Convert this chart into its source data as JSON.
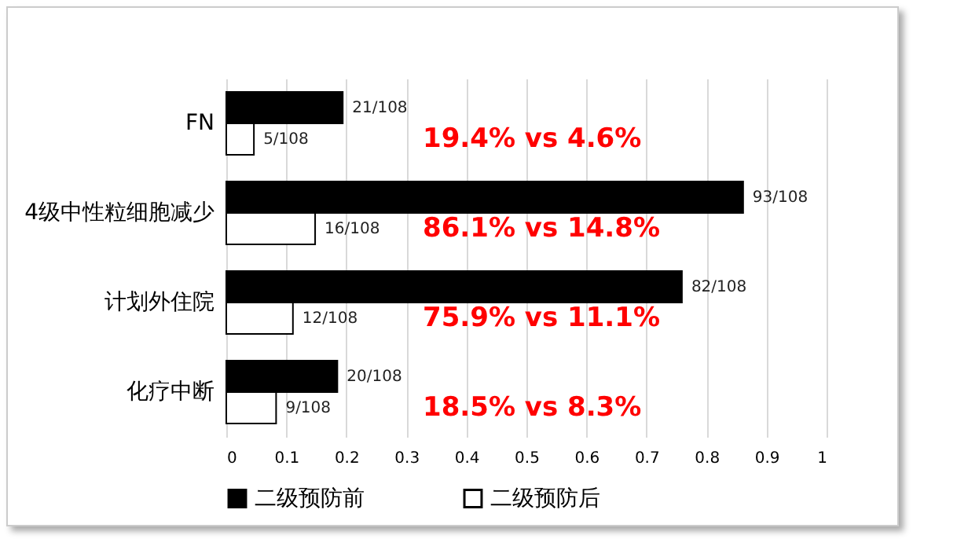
{
  "chart_data": {
    "type": "bar",
    "orientation": "horizontal",
    "categories": [
      "FN",
      "4级中性粒细胞减少",
      "计划外住院",
      "化疗中断"
    ],
    "series": [
      {
        "name": "二级预防前",
        "color": "#000000",
        "values": [
          0.194,
          0.861,
          0.759,
          0.185
        ],
        "value_labels": [
          "21/108",
          "93/108",
          "82/108",
          "20/108"
        ]
      },
      {
        "name": "二级预防后",
        "color": "#ffffff",
        "values": [
          0.046,
          0.148,
          0.111,
          0.083
        ],
        "value_labels": [
          "5/108",
          "16/108",
          "12/108",
          "9/108"
        ]
      }
    ],
    "xlim": [
      0,
      1
    ],
    "xticks": [
      0,
      0.1,
      0.2,
      0.3,
      0.4,
      0.5,
      0.6,
      0.7,
      0.8,
      0.9,
      1
    ],
    "grid": "x",
    "legend": "bottom",
    "annotations": [
      "19.4% vs 4.6%",
      "86.1% vs 14.8%",
      "75.9% vs 11.1%",
      "18.5% vs 8.3%"
    ]
  }
}
